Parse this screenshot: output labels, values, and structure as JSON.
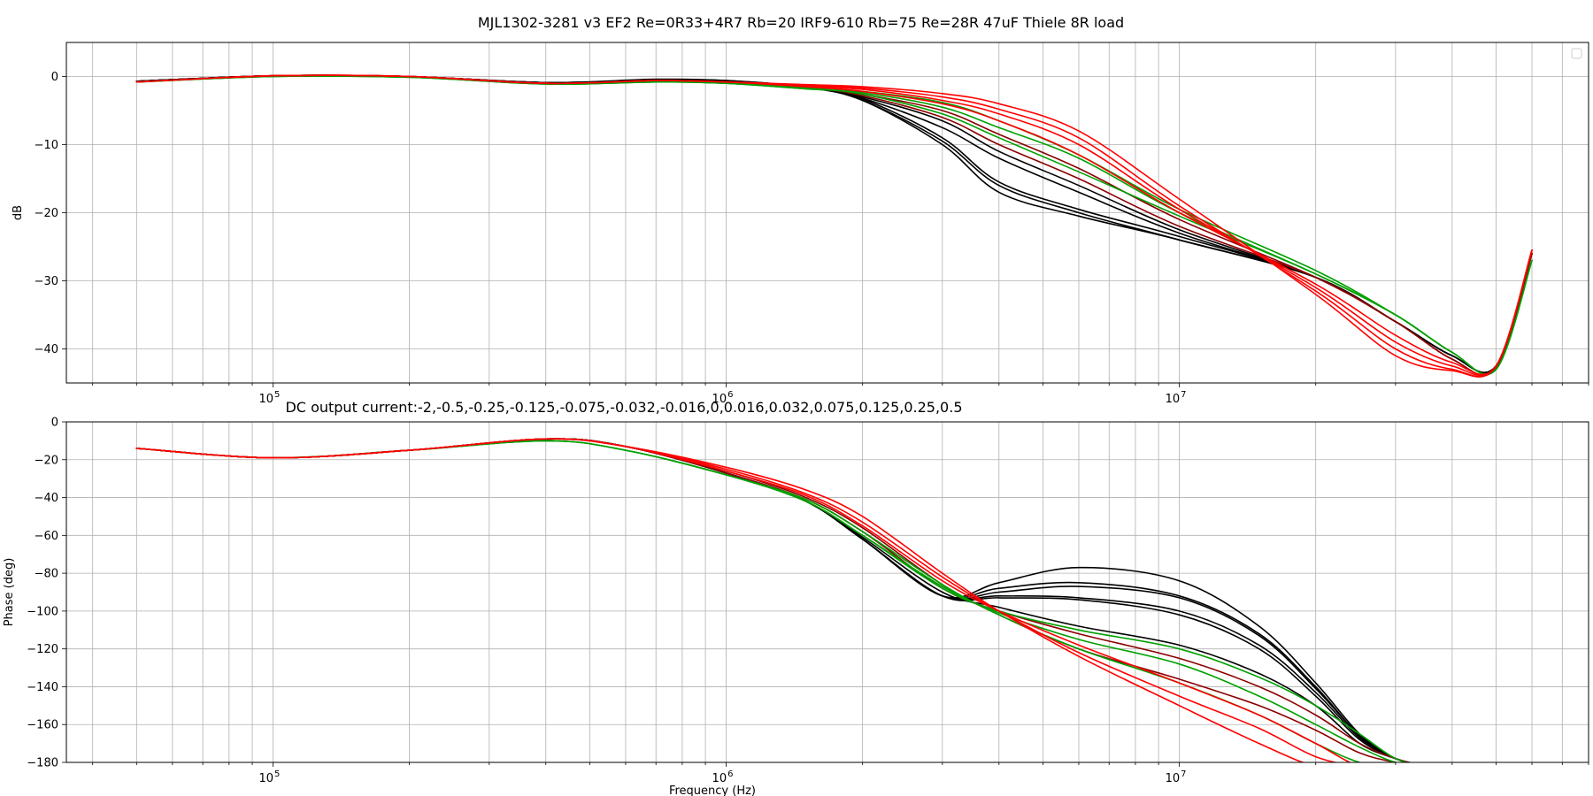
{
  "figure": {
    "title": "MJL1302-3281 v3 EF2 Re=0R33+4R7 Rb=20 IRF9-610 Rb=75 Re=28R 47uF Thiele 8R load",
    "lower_title": "DC output current:-2,-0.5,-0.25,-0.125,-0.075,-0.032,-0.016,0,0.016,0.032,0.075,0.125,0.25,0.5"
  },
  "chart_data": [
    {
      "type": "line",
      "title": "MJL1302-3281 v3 EF2 Re=0R33+4R7 Rb=20 IRF9-610 Rb=75 Re=28R 47uF Thiele 8R load",
      "xlabel": "",
      "ylabel": "dB",
      "xscale": "log",
      "xlim": [
        35000,
        80000000
      ],
      "ylim": [
        -45,
        5
      ],
      "yticks": [
        0,
        -10,
        -20,
        -30,
        -40
      ],
      "ytick_labels": [
        "0",
        "−10",
        "−20",
        "−30",
        "−40"
      ],
      "xticks": [
        100000,
        1000000,
        10000000
      ],
      "xtick_labels": [
        "10^5",
        "10^6",
        "10^7"
      ],
      "grid": "on",
      "legend": "top-right (empty)",
      "x": [
        50000,
        100000,
        200000,
        400000,
        700000,
        1000000,
        1500000,
        2000000,
        3000000,
        4000000,
        6000000,
        10000000,
        20000000,
        30000000,
        40000000,
        50000000,
        60000000
      ],
      "series": [
        {
          "color": "#000000",
          "values": [
            -0.7,
            0.1,
            0.0,
            -0.9,
            -0.4,
            -0.6,
            -1.6,
            -3.5,
            -9.5,
            -16,
            -20,
            -24,
            -29.5,
            -36,
            -41,
            -42.5,
            -26
          ]
        },
        {
          "color": "#000000",
          "values": [
            -0.7,
            0.1,
            0.0,
            -0.9,
            -0.5,
            -0.6,
            -1.6,
            -3.5,
            -10,
            -17,
            -20.5,
            -24,
            -29.5,
            -36,
            -41,
            -42.5,
            -26
          ]
        },
        {
          "color": "#000000",
          "values": [
            -0.7,
            0.1,
            0.0,
            -0.9,
            -0.5,
            -0.7,
            -1.6,
            -3.3,
            -9.0,
            -15.5,
            -19.5,
            -23.5,
            -29.5,
            -36,
            -41,
            -42.5,
            -26
          ]
        },
        {
          "color": "#000000",
          "values": [
            -0.7,
            0.1,
            0.0,
            -0.9,
            -0.5,
            -0.7,
            -1.6,
            -3.2,
            -7.5,
            -12,
            -17,
            -23,
            -29.5,
            -36,
            -41,
            -42.5,
            -26
          ]
        },
        {
          "color": "#000000",
          "values": [
            -0.7,
            0.1,
            0.0,
            -0.9,
            -0.5,
            -0.7,
            -1.6,
            -3.0,
            -6.5,
            -11,
            -16,
            -22.5,
            -29.5,
            -36,
            -41,
            -42.5,
            -26
          ]
        },
        {
          "color": "#8b0000",
          "values": [
            -0.8,
            0.1,
            0.0,
            -1.0,
            -0.6,
            -0.8,
            -1.6,
            -2.8,
            -6.0,
            -10,
            -15,
            -22,
            -29.5,
            -36,
            -41.5,
            -42.8,
            -26
          ]
        },
        {
          "color": "#8b0000",
          "values": [
            -0.8,
            0.1,
            0.0,
            -1.0,
            -0.6,
            -0.8,
            -1.6,
            -2.6,
            -5.0,
            -8.5,
            -13.5,
            -21,
            -29.5,
            -36,
            -41.5,
            -42.8,
            -26
          ]
        },
        {
          "color": "#00a000",
          "values": [
            -0.8,
            0.0,
            -0.1,
            -1.1,
            -0.8,
            -1.0,
            -1.7,
            -2.6,
            -5.5,
            -9.0,
            -14,
            -20.5,
            -29,
            -35,
            -40.5,
            -43,
            -27
          ]
        },
        {
          "color": "#00a000",
          "values": [
            -0.8,
            0.0,
            -0.1,
            -1.1,
            -0.8,
            -1.0,
            -1.8,
            -2.4,
            -4.5,
            -7.5,
            -12,
            -20,
            -29,
            -35,
            -40.5,
            -43,
            -27
          ]
        },
        {
          "color": "#00a000",
          "values": [
            -0.8,
            0.0,
            -0.1,
            -1.1,
            -0.8,
            -1.0,
            -1.8,
            -2.2,
            -3.8,
            -6.5,
            -11.5,
            -19.5,
            -28.5,
            -35,
            -40.5,
            -43,
            -27
          ]
        },
        {
          "color": "#ff0000",
          "values": [
            -0.8,
            0.1,
            0.0,
            -1.0,
            -0.6,
            -0.8,
            -1.5,
            -2.2,
            -4.0,
            -6.5,
            -11.5,
            -20,
            -30.5,
            -38,
            -42,
            -42.5,
            -25.5
          ]
        },
        {
          "color": "#ff0000",
          "values": [
            -0.8,
            0.1,
            0.0,
            -1.0,
            -0.6,
            -0.8,
            -1.4,
            -1.9,
            -3.5,
            -5.5,
            -10,
            -19.5,
            -31,
            -39,
            -42.5,
            -42.5,
            -25.5
          ]
        },
        {
          "color": "#ff0000",
          "values": [
            -0.8,
            0.1,
            0.0,
            -1.0,
            -0.6,
            -0.8,
            -1.3,
            -1.7,
            -3.0,
            -4.8,
            -9.0,
            -19,
            -31.5,
            -40,
            -43,
            -42.5,
            -25.5
          ]
        },
        {
          "color": "#ff0000",
          "values": [
            -0.8,
            0.1,
            0.0,
            -1.0,
            -0.6,
            -0.8,
            -1.2,
            -1.5,
            -2.5,
            -4.0,
            -8.0,
            -18,
            -32,
            -41,
            -43.2,
            -42.5,
            -25.5
          ]
        }
      ]
    },
    {
      "type": "line",
      "title": "DC output current:-2,-0.5,-0.25,-0.125,-0.075,-0.032,-0.016,0,0.016,0.032,0.075,0.125,0.25,0.5",
      "xlabel": "Frequency (Hz)",
      "ylabel": "Phase (deg)",
      "xscale": "log",
      "xlim": [
        35000,
        80000000
      ],
      "ylim": [
        -180,
        0
      ],
      "yticks": [
        0,
        -20,
        -40,
        -60,
        -80,
        -100,
        -120,
        -140,
        -160,
        -180
      ],
      "ytick_labels": [
        "0",
        "−20",
        "−40",
        "−60",
        "−80",
        "−100",
        "−120",
        "−140",
        "−160",
        "−180"
      ],
      "xticks": [
        100000,
        1000000,
        10000000
      ],
      "xtick_labels": [
        "10^5",
        "10^6",
        "10^7"
      ],
      "grid": "on",
      "x": [
        50000,
        100000,
        200000,
        400000,
        600000,
        1000000,
        1500000,
        2000000,
        3000000,
        4000000,
        6000000,
        10000000,
        15000000,
        20000000,
        25000000,
        30000000,
        35000000
      ],
      "series": [
        {
          "color": "#000000",
          "values": [
            -14,
            -19,
            -15,
            -9,
            -13,
            -27,
            -42,
            -62,
            -92,
            -85,
            -77,
            -84,
            -108,
            -138,
            -165,
            -178,
            -182
          ]
        },
        {
          "color": "#000000",
          "values": [
            -14,
            -19,
            -15,
            -9,
            -13,
            -27,
            -42,
            -62,
            -92,
            -88,
            -85,
            -92,
            -112,
            -140,
            -166,
            -178,
            -182
          ]
        },
        {
          "color": "#000000",
          "values": [
            -14,
            -19,
            -15,
            -9,
            -13,
            -27,
            -42,
            -62,
            -92,
            -90,
            -87,
            -93,
            -113,
            -141,
            -166,
            -178,
            -182
          ]
        },
        {
          "color": "#000000",
          "values": [
            -14,
            -19,
            -15,
            -9,
            -13,
            -27,
            -42,
            -62,
            -92,
            -92,
            -93,
            -100,
            -118,
            -143,
            -167,
            -178,
            -182
          ]
        },
        {
          "color": "#000000",
          "values": [
            -14,
            -19,
            -15,
            -9,
            -13,
            -27,
            -42,
            -62,
            -92,
            -93,
            -94,
            -102,
            -120,
            -145,
            -168,
            -178,
            -182
          ]
        },
        {
          "color": "#000000",
          "values": [
            -14,
            -19,
            -15,
            -9,
            -13,
            -27,
            -42,
            -61,
            -90,
            -98,
            -108,
            -118,
            -133,
            -150,
            -170,
            -178,
            -182
          ]
        },
        {
          "color": "#8b0000",
          "values": [
            -14,
            -19,
            -15,
            -9,
            -13,
            -27,
            -41,
            -58,
            -88,
            -100,
            -112,
            -125,
            -140,
            -155,
            -170,
            -178,
            -182
          ]
        },
        {
          "color": "#8b0000",
          "values": [
            -14,
            -19,
            -15,
            -9,
            -13,
            -26,
            -40,
            -56,
            -86,
            -102,
            -120,
            -136,
            -150,
            -163,
            -175,
            -180,
            -182
          ]
        },
        {
          "color": "#00a000",
          "values": [
            -14,
            -19,
            -15,
            -10,
            -15,
            -28,
            -42,
            -60,
            -88,
            -100,
            -110,
            -120,
            -135,
            -150,
            -165,
            -178,
            -182
          ]
        },
        {
          "color": "#00a000",
          "values": [
            -14,
            -19,
            -15,
            -10,
            -15,
            -28,
            -42,
            -60,
            -87,
            -101,
            -115,
            -128,
            -145,
            -160,
            -172,
            -180,
            -182
          ]
        },
        {
          "color": "#00a000",
          "values": [
            -14,
            -19,
            -15,
            -10,
            -15,
            -28,
            -41,
            -58,
            -86,
            -102,
            -120,
            -138,
            -155,
            -170,
            -180,
            -182,
            -182
          ]
        },
        {
          "color": "#ff0000",
          "values": [
            -14,
            -19,
            -15,
            -9,
            -13,
            -26,
            -39,
            -55,
            -84,
            -100,
            -118,
            -138,
            -155,
            -170,
            -182,
            -182,
            -182
          ]
        },
        {
          "color": "#ff0000",
          "values": [
            -14,
            -19,
            -15,
            -9,
            -13,
            -25,
            -38,
            -53,
            -82,
            -100,
            -122,
            -145,
            -162,
            -177,
            -182,
            -182,
            -182
          ]
        },
        {
          "color": "#ff0000",
          "values": [
            -14,
            -19,
            -15,
            -9,
            -13,
            -24,
            -36,
            -50,
            -80,
            -100,
            -124,
            -150,
            -170,
            -182,
            -182,
            -182,
            -182
          ]
        }
      ]
    }
  ]
}
